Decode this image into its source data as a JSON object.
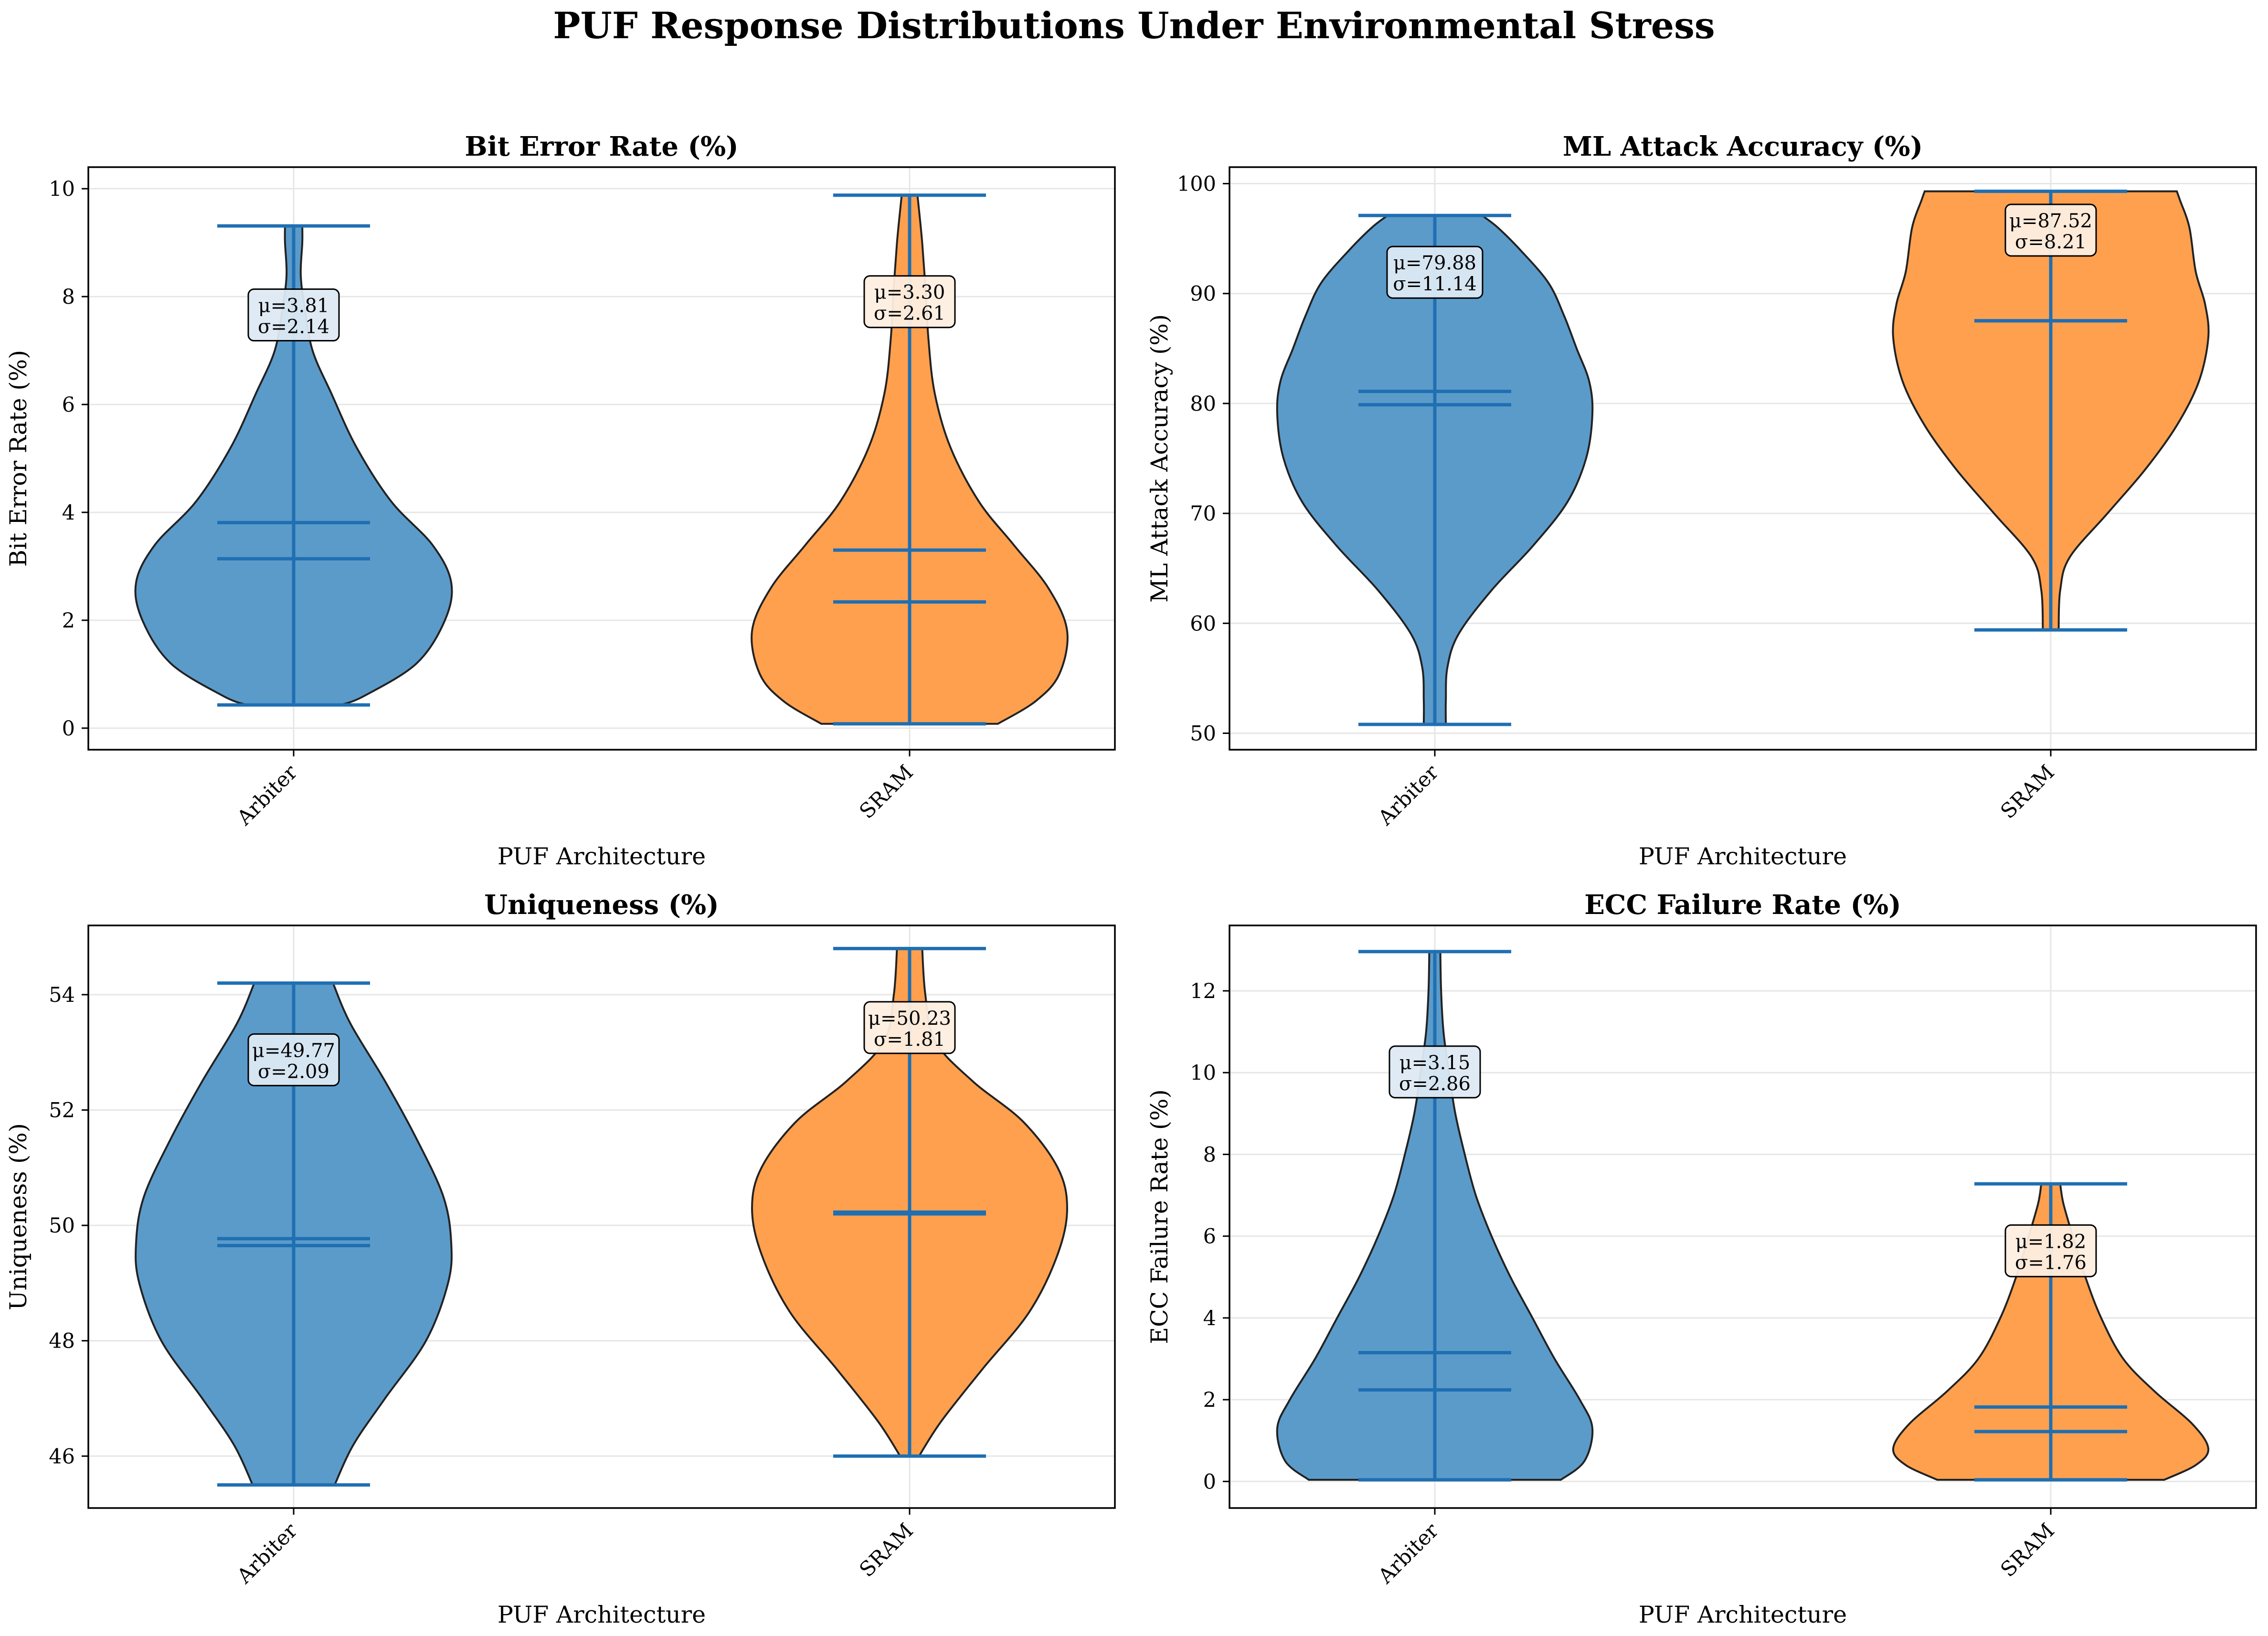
{
  "suptitle": "PUF Response Distributions Under Environmental Stress",
  "colors": {
    "arbiter": "#5b9bca",
    "sram": "#ffa04f",
    "stat_lines": "#1f6fb2",
    "grid": "#e6e6e6"
  },
  "chart_data": [
    {
      "type": "violin",
      "title": "Bit Error Rate (%)",
      "xlabel": "PUF Architecture",
      "ylabel": "Bit Error Rate (%)",
      "categories": [
        "Arbiter",
        "SRAM"
      ],
      "ylim": [
        -0.4,
        10.4
      ],
      "yticks": [
        0,
        2,
        4,
        6,
        8,
        10
      ],
      "grid": true,
      "series": [
        {
          "category": "Arbiter",
          "min": 0.43,
          "max": 9.31,
          "mean": 3.81,
          "median": 3.14,
          "std": 2.14,
          "label_mean": "μ=3.81",
          "label_std": "σ=2.14",
          "profile": [
            [
              0.43,
              0.3
            ],
            [
              0.6,
              0.45
            ],
            [
              1.2,
              0.78
            ],
            [
              2.0,
              0.96
            ],
            [
              2.7,
              1.0
            ],
            [
              3.4,
              0.88
            ],
            [
              4.2,
              0.62
            ],
            [
              5.2,
              0.4
            ],
            [
              6.2,
              0.24
            ],
            [
              7.0,
              0.12
            ],
            [
              7.8,
              0.07
            ],
            [
              8.4,
              0.045
            ],
            [
              9.0,
              0.055
            ],
            [
              9.31,
              0.055
            ]
          ]
        },
        {
          "category": "SRAM",
          "min": 0.08,
          "max": 9.88,
          "mean": 3.3,
          "median": 2.34,
          "std": 2.61,
          "label_mean": "μ=3.30",
          "label_std": "σ=2.61",
          "profile": [
            [
              0.08,
              0.56
            ],
            [
              0.5,
              0.8
            ],
            [
              1.0,
              0.95
            ],
            [
              1.8,
              1.0
            ],
            [
              2.6,
              0.88
            ],
            [
              3.4,
              0.66
            ],
            [
              4.2,
              0.44
            ],
            [
              5.2,
              0.26
            ],
            [
              6.2,
              0.16
            ],
            [
              7.2,
              0.12
            ],
            [
              8.2,
              0.1
            ],
            [
              9.0,
              0.08
            ],
            [
              9.6,
              0.06
            ],
            [
              9.88,
              0.05
            ]
          ]
        }
      ]
    },
    {
      "type": "violin",
      "title": "ML Attack Accuracy (%)",
      "xlabel": "PUF Architecture",
      "ylabel": "ML Attack Accuracy (%)",
      "categories": [
        "Arbiter",
        "SRAM"
      ],
      "ylim": [
        48.5,
        101.5
      ],
      "yticks": [
        50,
        60,
        70,
        80,
        90,
        100
      ],
      "grid": true,
      "series": [
        {
          "category": "Arbiter",
          "min": 50.8,
          "max": 97.1,
          "mean": 79.88,
          "median": 81.1,
          "std": 11.14,
          "label_mean": "μ=79.88",
          "label_std": "σ=11.14",
          "profile": [
            [
              50.8,
              0.07
            ],
            [
              53,
              0.07
            ],
            [
              56,
              0.08
            ],
            [
              59,
              0.15
            ],
            [
              63,
              0.36
            ],
            [
              67,
              0.62
            ],
            [
              71,
              0.84
            ],
            [
              75,
              0.96
            ],
            [
              79,
              1.0
            ],
            [
              82,
              0.98
            ],
            [
              85,
              0.9
            ],
            [
              88,
              0.82
            ],
            [
              91,
              0.72
            ],
            [
              94,
              0.54
            ],
            [
              96,
              0.4
            ],
            [
              97.1,
              0.3
            ]
          ]
        },
        {
          "category": "SRAM",
          "min": 59.4,
          "max": 99.3,
          "mean": 87.52,
          "median": 87.52,
          "std": 8.21,
          "label_mean": "μ=87.52",
          "label_std": "σ=8.21",
          "profile": [
            [
              59.4,
              0.05
            ],
            [
              63,
              0.06
            ],
            [
              66,
              0.12
            ],
            [
              70,
              0.36
            ],
            [
              74,
              0.6
            ],
            [
              78,
              0.8
            ],
            [
              82,
              0.94
            ],
            [
              86,
              1.0
            ],
            [
              89,
              0.98
            ],
            [
              92,
              0.92
            ],
            [
              96,
              0.88
            ],
            [
              98.5,
              0.82
            ],
            [
              99.3,
              0.8
            ]
          ]
        }
      ]
    },
    {
      "type": "violin",
      "title": "Uniqueness (%)",
      "xlabel": "PUF Architecture",
      "ylabel": "Uniqueness (%)",
      "categories": [
        "Arbiter",
        "SRAM"
      ],
      "ylim": [
        45.1,
        55.2
      ],
      "yticks": [
        46,
        48,
        50,
        52,
        54
      ],
      "grid": true,
      "series": [
        {
          "category": "Arbiter",
          "min": 45.5,
          "max": 54.2,
          "mean": 49.77,
          "median": 49.65,
          "std": 2.09,
          "label_mean": "μ=49.77",
          "label_std": "σ=2.09",
          "profile": [
            [
              45.5,
              0.26
            ],
            [
              46.2,
              0.38
            ],
            [
              47.0,
              0.58
            ],
            [
              48.0,
              0.84
            ],
            [
              49.0,
              0.98
            ],
            [
              49.7,
              1.0
            ],
            [
              50.5,
              0.95
            ],
            [
              51.5,
              0.78
            ],
            [
              52.5,
              0.58
            ],
            [
              53.5,
              0.36
            ],
            [
              54.2,
              0.25
            ]
          ]
        },
        {
          "category": "SRAM",
          "min": 46.0,
          "max": 54.8,
          "mean": 50.23,
          "median": 50.2,
          "std": 1.81,
          "label_mean": "μ=50.23",
          "label_std": "σ=1.81",
          "profile": [
            [
              46.0,
              0.06
            ],
            [
              46.6,
              0.2
            ],
            [
              47.5,
              0.46
            ],
            [
              48.5,
              0.76
            ],
            [
              49.5,
              0.94
            ],
            [
              50.3,
              1.0
            ],
            [
              51.0,
              0.94
            ],
            [
              51.8,
              0.72
            ],
            [
              52.5,
              0.4
            ],
            [
              53.2,
              0.16
            ],
            [
              54.0,
              0.1
            ],
            [
              54.8,
              0.08
            ]
          ]
        }
      ]
    },
    {
      "type": "violin",
      "title": "ECC Failure Rate (%)",
      "xlabel": "PUF Architecture",
      "ylabel": "ECC Failure Rate (%)",
      "categories": [
        "Arbiter",
        "SRAM"
      ],
      "ylim": [
        -0.65,
        13.6
      ],
      "yticks": [
        0,
        2,
        4,
        6,
        8,
        10,
        12
      ],
      "grid": true,
      "series": [
        {
          "category": "Arbiter",
          "min": 0.04,
          "max": 12.96,
          "mean": 3.15,
          "median": 2.24,
          "std": 2.86,
          "label_mean": "μ=3.15",
          "label_std": "σ=2.86",
          "profile": [
            [
              0.04,
              0.8
            ],
            [
              0.5,
              0.95
            ],
            [
              1.3,
              1.0
            ],
            [
              2.0,
              0.92
            ],
            [
              3.0,
              0.76
            ],
            [
              4.0,
              0.62
            ],
            [
              5.0,
              0.48
            ],
            [
              6.0,
              0.36
            ],
            [
              7.0,
              0.26
            ],
            [
              8.0,
              0.19
            ],
            [
              9.0,
              0.13
            ],
            [
              10.0,
              0.09
            ],
            [
              11.0,
              0.055
            ],
            [
              12.0,
              0.04
            ],
            [
              12.96,
              0.035
            ]
          ]
        },
        {
          "category": "SRAM",
          "min": 0.04,
          "max": 7.28,
          "mean": 1.82,
          "median": 1.22,
          "std": 1.76,
          "label_mean": "μ=1.82",
          "label_std": "σ=1.76",
          "profile": [
            [
              0.04,
              0.72
            ],
            [
              0.4,
              0.92
            ],
            [
              0.8,
              1.0
            ],
            [
              1.4,
              0.9
            ],
            [
              2.2,
              0.66
            ],
            [
              3.0,
              0.46
            ],
            [
              4.0,
              0.32
            ],
            [
              5.0,
              0.22
            ],
            [
              6.0,
              0.14
            ],
            [
              6.8,
              0.08
            ],
            [
              7.28,
              0.06
            ]
          ]
        }
      ]
    }
  ]
}
